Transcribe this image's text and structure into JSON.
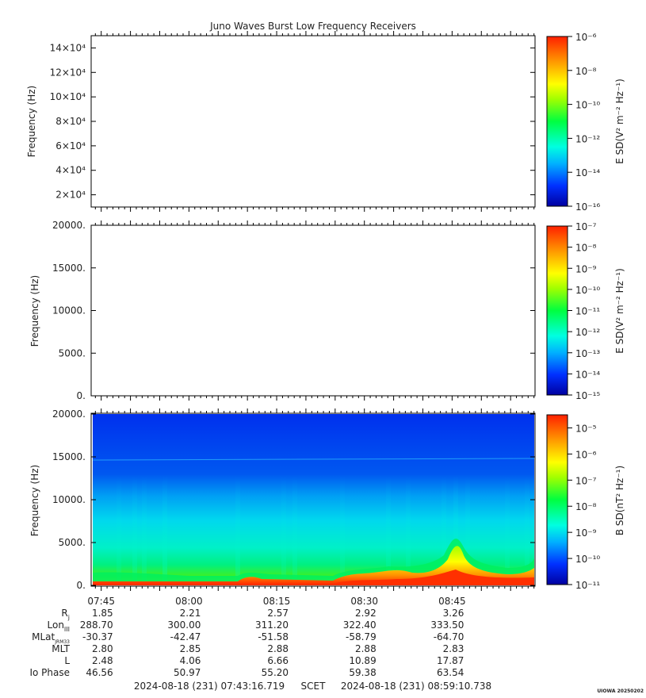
{
  "title": "Juno Waves Burst Low Frequency Receivers",
  "footer": {
    "start": "2024-08-18 (231) 07:43:16.719",
    "frame": "SCET",
    "end": "2024-08-18 (231) 08:59:10.738",
    "credit": "UIOWA 20250202"
  },
  "time_ticks": [
    "07:45",
    "08:00",
    "08:15",
    "08:30",
    "08:45"
  ],
  "ephemeris": {
    "labels": [
      "Rj",
      "LonIII",
      "MLatJRM33",
      "MLT",
      "L",
      "Io Phase"
    ],
    "rows": [
      [
        "1.85",
        "2.21",
        "2.57",
        "2.92",
        "3.26"
      ],
      [
        "288.70",
        "300.00",
        "311.20",
        "322.40",
        "333.50"
      ],
      [
        "-30.37",
        "-42.47",
        "-51.58",
        "-58.79",
        "-64.70"
      ],
      [
        "2.80",
        "2.85",
        "2.88",
        "2.88",
        "2.83"
      ],
      [
        "2.48",
        "4.06",
        "6.66",
        "10.89",
        "17.87"
      ],
      [
        "46.56",
        "50.97",
        "55.20",
        "59.38",
        "63.54"
      ]
    ]
  },
  "chart_data": [
    {
      "type": "heatmap",
      "panel": "Electric field, high range",
      "ylabel": "Frequency (Hz)",
      "yticks": [
        "2×10⁴",
        "4×10⁴",
        "6×10⁴",
        "8×10⁴",
        "10×10⁴",
        "12×10⁴",
        "14×10⁴"
      ],
      "ytick_values": [
        20000,
        40000,
        60000,
        80000,
        100000,
        120000,
        140000
      ],
      "ylim": [
        10000,
        150000
      ],
      "colorbar_label": "E SD(V² m⁻² Hz⁻¹)",
      "colorbar_ticks": [
        "10⁻⁶",
        "10⁻⁸",
        "10⁻¹⁰",
        "10⁻¹²",
        "10⁻¹⁴",
        "10⁻¹⁶"
      ],
      "colorbar_range_exp": [
        -16,
        -6
      ],
      "data": "empty"
    },
    {
      "type": "heatmap",
      "panel": "Electric field, low range",
      "ylabel": "Frequency (Hz)",
      "yticks": [
        "20000.",
        "15000.",
        "10000.",
        "5000.",
        "0."
      ],
      "ytick_values": [
        20000,
        15000,
        10000,
        5000,
        0
      ],
      "ylim": [
        0,
        20000
      ],
      "colorbar_label": "E SD(V² m⁻² Hz⁻¹)",
      "colorbar_ticks": [
        "10⁻⁷",
        "10⁻⁸",
        "10⁻⁹",
        "10⁻¹⁰",
        "10⁻¹¹",
        "10⁻¹²",
        "10⁻¹³",
        "10⁻¹⁴",
        "10⁻¹⁵"
      ],
      "colorbar_range_exp": [
        -15,
        -7
      ],
      "data": "empty"
    },
    {
      "type": "heatmap",
      "panel": "Magnetic field",
      "ylabel": "Frequency (Hz)",
      "yticks": [
        "20000.",
        "15000.",
        "10000.",
        "5000.",
        "0."
      ],
      "ytick_values": [
        20000,
        15000,
        10000,
        5000,
        0
      ],
      "ylim": [
        0,
        20000
      ],
      "colorbar_label": "B SD(nT² Hz⁻¹)",
      "colorbar_ticks": [
        "10⁻⁵",
        "10⁻⁶",
        "10⁻⁷",
        "10⁻⁸",
        "10⁻⁹",
        "10⁻¹⁰",
        "10⁻¹¹"
      ],
      "colorbar_range_exp": [
        -11,
        -4.5
      ],
      "data": "spectrogram: blue background ~1e-11 at high frequency; cyan/green band below ~10 kHz; orange-red emission rising toward 08:45 below ~5 kHz"
    }
  ]
}
